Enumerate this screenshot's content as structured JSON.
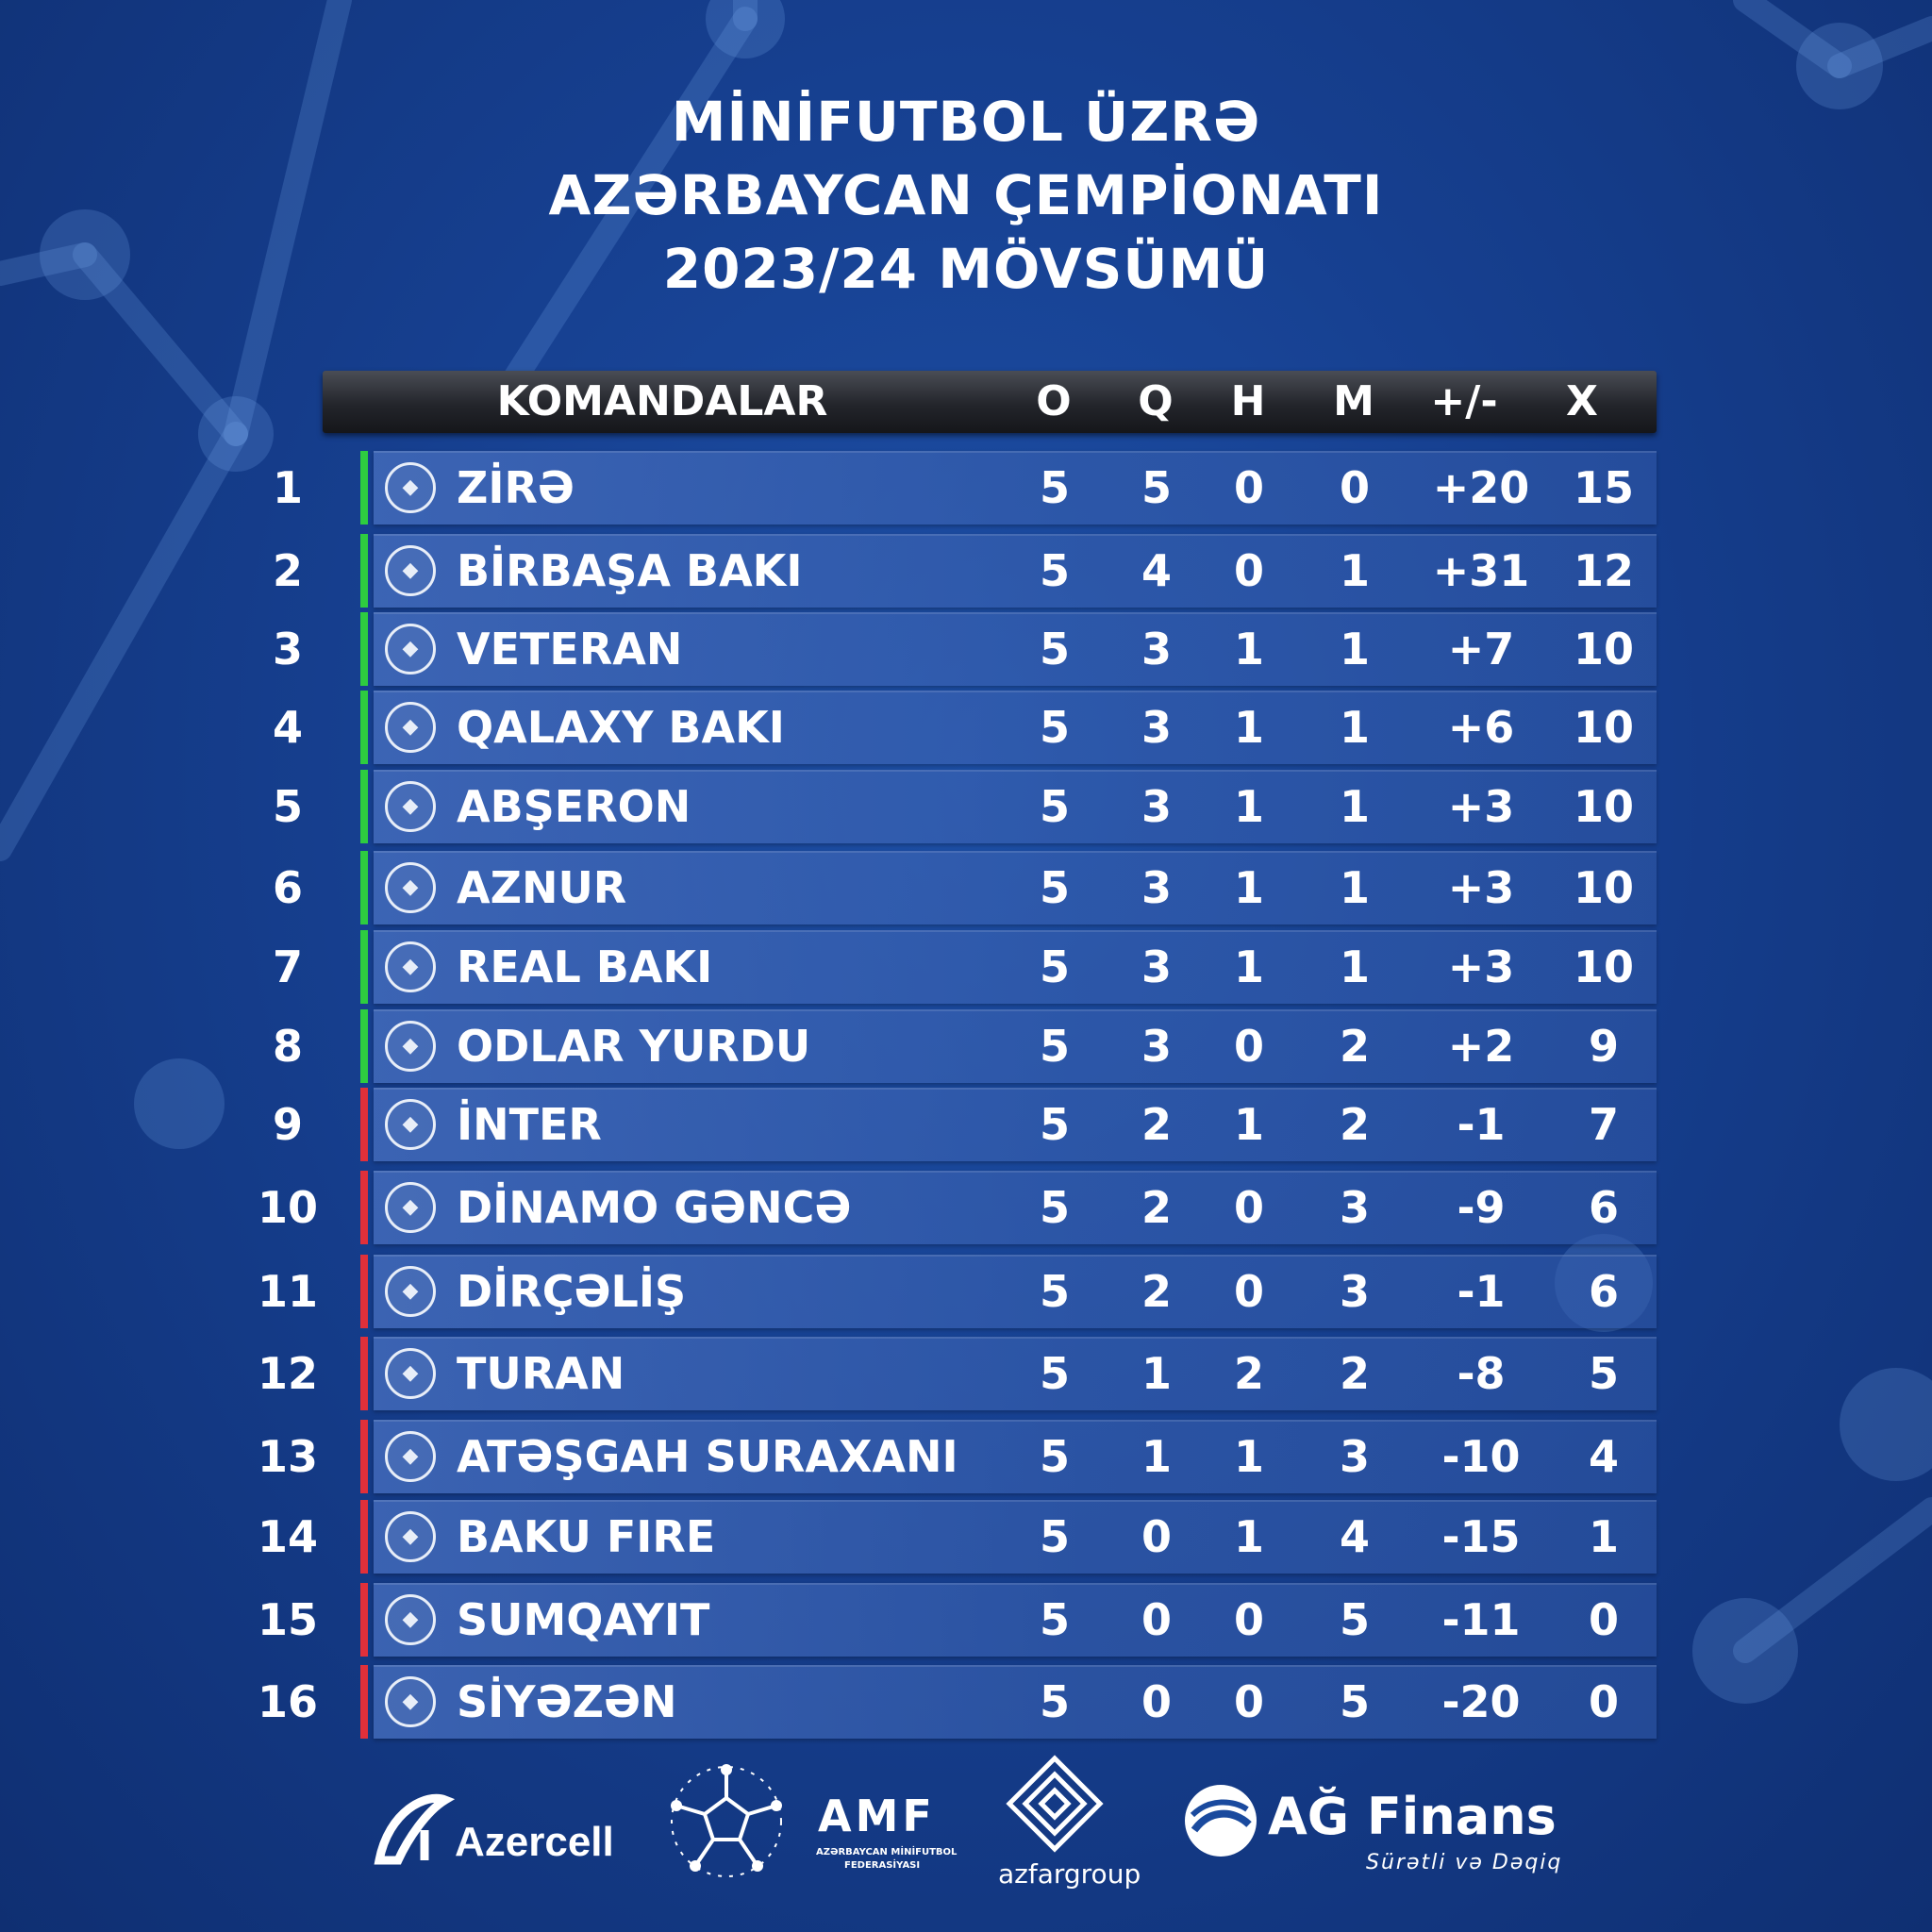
{
  "title": {
    "line1": "MİNİFUTBOL ÜZRƏ",
    "line2": "AZƏRBAYCAN ÇEMPİONATI",
    "line3": "2023/24 MÖVSÜMÜ"
  },
  "header": {
    "team": "KOMANDALAR",
    "o": "O",
    "q": "Q",
    "h": "H",
    "m": "M",
    "gd": "+/-",
    "x": "X"
  },
  "colors": {
    "top": "#2ecc40",
    "bottom": "#e0303a"
  },
  "rows": [
    {
      "rank": "1",
      "team": "ZİRƏ",
      "o": "5",
      "q": "5",
      "h": "0",
      "m": "0",
      "gd": "+20",
      "x": "15",
      "zone": "top"
    },
    {
      "rank": "2",
      "team": "BİRBAŞA BAKI",
      "o": "5",
      "q": "4",
      "h": "0",
      "m": "1",
      "gd": "+31",
      "x": "12",
      "zone": "top"
    },
    {
      "rank": "3",
      "team": "VETERAN",
      "o": "5",
      "q": "3",
      "h": "1",
      "m": "1",
      "gd": "+7",
      "x": "10",
      "zone": "top"
    },
    {
      "rank": "4",
      "team": "QALAXY BAKI",
      "o": "5",
      "q": "3",
      "h": "1",
      "m": "1",
      "gd": "+6",
      "x": "10",
      "zone": "top"
    },
    {
      "rank": "5",
      "team": "ABŞERON",
      "o": "5",
      "q": "3",
      "h": "1",
      "m": "1",
      "gd": "+3",
      "x": "10",
      "zone": "top"
    },
    {
      "rank": "6",
      "team": "AZNUR",
      "o": "5",
      "q": "3",
      "h": "1",
      "m": "1",
      "gd": "+3",
      "x": "10",
      "zone": "top"
    },
    {
      "rank": "7",
      "team": "REAL BAKI",
      "o": "5",
      "q": "3",
      "h": "1",
      "m": "1",
      "gd": "+3",
      "x": "10",
      "zone": "top"
    },
    {
      "rank": "8",
      "team": "ODLAR YURDU",
      "o": "5",
      "q": "3",
      "h": "0",
      "m": "2",
      "gd": "+2",
      "x": "9",
      "zone": "top"
    },
    {
      "rank": "9",
      "team": "İNTER",
      "o": "5",
      "q": "2",
      "h": "1",
      "m": "2",
      "gd": "-1",
      "x": "7",
      "zone": "bottom"
    },
    {
      "rank": "10",
      "team": "DİNAMO GƏNCƏ",
      "o": "5",
      "q": "2",
      "h": "0",
      "m": "3",
      "gd": "-9",
      "x": "6",
      "zone": "bottom"
    },
    {
      "rank": "11",
      "team": "DİRÇƏLİŞ",
      "o": "5",
      "q": "2",
      "h": "0",
      "m": "3",
      "gd": "-1",
      "x": "6",
      "zone": "bottom"
    },
    {
      "rank": "12",
      "team": "TURAN",
      "o": "5",
      "q": "1",
      "h": "2",
      "m": "2",
      "gd": "-8",
      "x": "5",
      "zone": "bottom"
    },
    {
      "rank": "13",
      "team": "ATƏŞGAH SURAXANI",
      "o": "5",
      "q": "1",
      "h": "1",
      "m": "3",
      "gd": "-10",
      "x": "4",
      "zone": "bottom"
    },
    {
      "rank": "14",
      "team": "BAKU FIRE",
      "o": "5",
      "q": "0",
      "h": "1",
      "m": "4",
      "gd": "-15",
      "x": "1",
      "zone": "bottom"
    },
    {
      "rank": "15",
      "team": "SUMQAYIT",
      "o": "5",
      "q": "0",
      "h": "0",
      "m": "5",
      "gd": "-11",
      "x": "0",
      "zone": "bottom"
    },
    {
      "rank": "16",
      "team": "SİYƏZƏN",
      "o": "5",
      "q": "0",
      "h": "0",
      "m": "5",
      "gd": "-20",
      "x": "0",
      "zone": "bottom"
    }
  ],
  "sponsors": {
    "azercell": "Azercell",
    "amf": "AMF",
    "amf_sub1": "AZƏRBAYCAN MİNİFUTBOL",
    "amf_sub2": "FEDERASİYASI",
    "azfar": "azfargroup",
    "ag": "AĞ Finans",
    "ag_tagline": "Sürətli və Dəqiq"
  }
}
